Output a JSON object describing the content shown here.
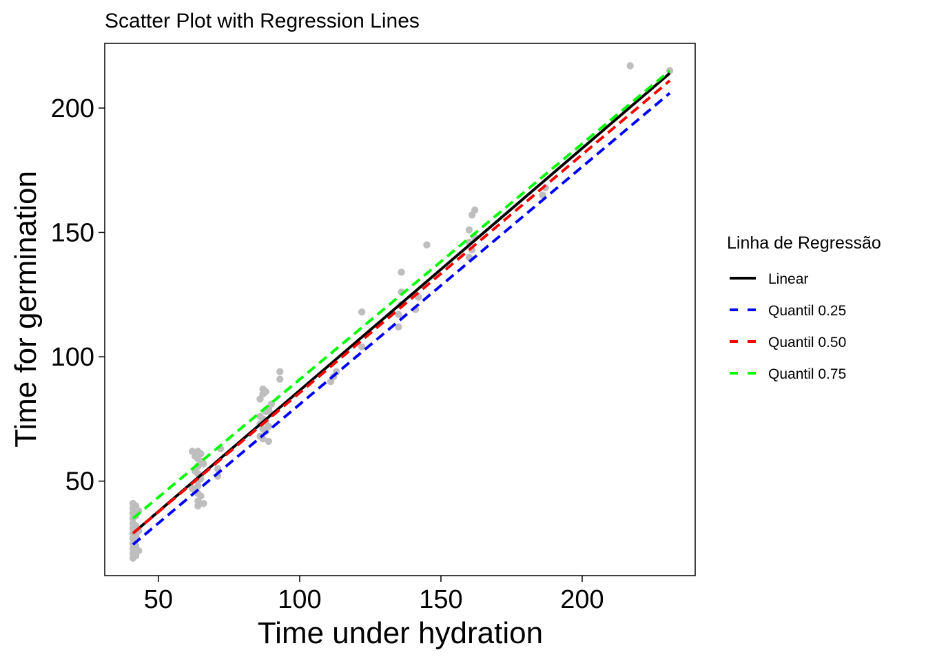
{
  "chart_data": {
    "type": "scatter",
    "title": "Scatter Plot with Regression Lines",
    "xlabel": "Time under hydration",
    "ylabel": "Time for germination",
    "xlim": [
      31,
      240
    ],
    "ylim": [
      12,
      226
    ],
    "x_ticks": [
      50,
      100,
      150,
      200
    ],
    "y_ticks": [
      50,
      100,
      150,
      200
    ],
    "grid": false,
    "point_color": "#bebebe",
    "points": [
      {
        "x": 41,
        "y": 19
      },
      {
        "x": 41,
        "y": 21
      },
      {
        "x": 41,
        "y": 23
      },
      {
        "x": 41,
        "y": 25
      },
      {
        "x": 41,
        "y": 27
      },
      {
        "x": 41,
        "y": 29
      },
      {
        "x": 41,
        "y": 31
      },
      {
        "x": 41,
        "y": 33
      },
      {
        "x": 41,
        "y": 35
      },
      {
        "x": 41,
        "y": 37
      },
      {
        "x": 41,
        "y": 39
      },
      {
        "x": 41,
        "y": 41
      },
      {
        "x": 42,
        "y": 20
      },
      {
        "x": 42,
        "y": 24
      },
      {
        "x": 42,
        "y": 28
      },
      {
        "x": 42,
        "y": 32
      },
      {
        "x": 42,
        "y": 36
      },
      {
        "x": 42,
        "y": 40
      },
      {
        "x": 43,
        "y": 22
      },
      {
        "x": 43,
        "y": 30
      },
      {
        "x": 43,
        "y": 38
      },
      {
        "x": 64,
        "y": 40
      },
      {
        "x": 64,
        "y": 42
      },
      {
        "x": 64,
        "y": 45
      },
      {
        "x": 64,
        "y": 48
      },
      {
        "x": 64,
        "y": 50
      },
      {
        "x": 64,
        "y": 53
      },
      {
        "x": 64,
        "y": 56
      },
      {
        "x": 64,
        "y": 59
      },
      {
        "x": 64,
        "y": 62
      },
      {
        "x": 63,
        "y": 46
      },
      {
        "x": 63,
        "y": 54
      },
      {
        "x": 63,
        "y": 60
      },
      {
        "x": 65,
        "y": 44
      },
      {
        "x": 65,
        "y": 51
      },
      {
        "x": 65,
        "y": 58
      },
      {
        "x": 65,
        "y": 61
      },
      {
        "x": 62,
        "y": 47
      },
      {
        "x": 62,
        "y": 62
      },
      {
        "x": 66,
        "y": 41
      },
      {
        "x": 66,
        "y": 57
      },
      {
        "x": 71,
        "y": 52
      },
      {
        "x": 71,
        "y": 55
      },
      {
        "x": 72,
        "y": 63
      },
      {
        "x": 86,
        "y": 68
      },
      {
        "x": 86,
        "y": 73
      },
      {
        "x": 86,
        "y": 76
      },
      {
        "x": 86,
        "y": 83
      },
      {
        "x": 87,
        "y": 67
      },
      {
        "x": 87,
        "y": 71
      },
      {
        "x": 87,
        "y": 75
      },
      {
        "x": 87,
        "y": 85
      },
      {
        "x": 87,
        "y": 87
      },
      {
        "x": 88,
        "y": 70
      },
      {
        "x": 88,
        "y": 74
      },
      {
        "x": 88,
        "y": 78
      },
      {
        "x": 88,
        "y": 86
      },
      {
        "x": 89,
        "y": 72
      },
      {
        "x": 89,
        "y": 79
      },
      {
        "x": 89,
        "y": 66
      },
      {
        "x": 90,
        "y": 77
      },
      {
        "x": 90,
        "y": 81
      },
      {
        "x": 93,
        "y": 91
      },
      {
        "x": 93,
        "y": 94
      },
      {
        "x": 111,
        "y": 90
      },
      {
        "x": 112,
        "y": 92
      },
      {
        "x": 113,
        "y": 94
      },
      {
        "x": 122,
        "y": 104
      },
      {
        "x": 122,
        "y": 118
      },
      {
        "x": 135,
        "y": 112
      },
      {
        "x": 135,
        "y": 117
      },
      {
        "x": 136,
        "y": 121
      },
      {
        "x": 136,
        "y": 126
      },
      {
        "x": 136,
        "y": 134
      },
      {
        "x": 141,
        "y": 119
      },
      {
        "x": 142,
        "y": 124
      },
      {
        "x": 145,
        "y": 145
      },
      {
        "x": 160,
        "y": 140
      },
      {
        "x": 160,
        "y": 146
      },
      {
        "x": 160,
        "y": 151
      },
      {
        "x": 161,
        "y": 143
      },
      {
        "x": 161,
        "y": 157
      },
      {
        "x": 162,
        "y": 148
      },
      {
        "x": 162,
        "y": 159
      },
      {
        "x": 186,
        "y": 165
      },
      {
        "x": 187,
        "y": 168
      },
      {
        "x": 217,
        "y": 217
      },
      {
        "x": 231,
        "y": 215
      }
    ],
    "lines": [
      {
        "name": "Linear",
        "color": "#000000",
        "dash": "solid",
        "x": [
          41,
          231
        ],
        "y": [
          29,
          214
        ]
      },
      {
        "name": "Quantil 0.25",
        "color": "#0000ff",
        "dash": "dashed",
        "x": [
          41,
          231
        ],
        "y": [
          24.5,
          206
        ]
      },
      {
        "name": "Quantil 0.50",
        "color": "#ff0000",
        "dash": "dashed",
        "x": [
          41,
          231
        ],
        "y": [
          29,
          211
        ]
      },
      {
        "name": "Quantil 0.75",
        "color": "#00ff00",
        "dash": "dashed",
        "x": [
          41,
          231
        ],
        "y": [
          35,
          215
        ]
      }
    ],
    "legend": {
      "title": "Linha de Regressão",
      "position": "right",
      "entries": [
        "Linear",
        "Quantil 0.25",
        "Quantil 0.50",
        "Quantil 0.75"
      ]
    }
  }
}
